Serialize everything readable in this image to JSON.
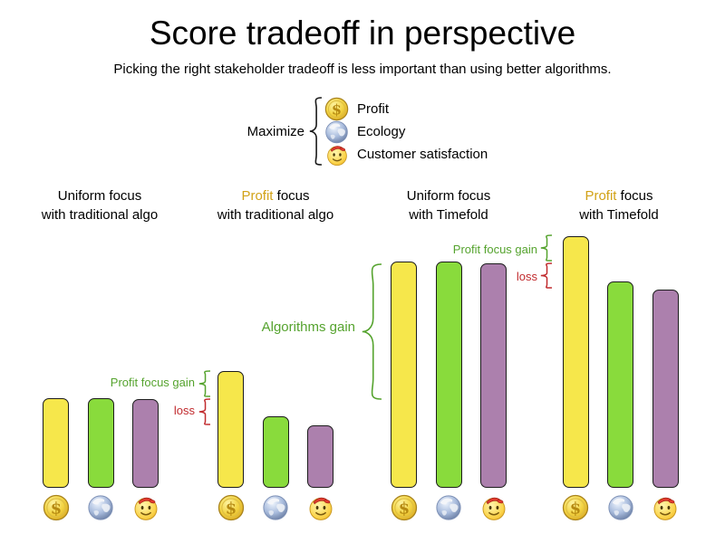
{
  "title": "Score tradeoff in perspective",
  "subtitle": "Picking the right stakeholder tradeoff is less important than using better algorithms.",
  "legend": {
    "label": "Maximize",
    "items": [
      {
        "icon": "coin-icon",
        "label": "Profit"
      },
      {
        "icon": "globe-icon",
        "label": "Ecology"
      },
      {
        "icon": "smiley-icon",
        "label": "Customer satisfaction"
      }
    ]
  },
  "groups": [
    {
      "line1_highlight": "",
      "line1_rest": "Uniform focus",
      "line2": "with traditional algo"
    },
    {
      "line1_highlight": "Profit",
      "line1_rest": " focus",
      "line2": "with traditional algo"
    },
    {
      "line1_highlight": "",
      "line1_rest": "Uniform focus",
      "line2": "with Timefold"
    },
    {
      "line1_highlight": "Profit",
      "line1_rest": " focus",
      "line2": "with Timefold"
    }
  ],
  "annotations": {
    "profit_gain_1": "Profit focus gain",
    "loss_1": "loss",
    "algorithms_gain": "Algorithms gain",
    "profit_gain_2": "Profit focus gain",
    "loss_2": "loss"
  },
  "colors": {
    "profit_bar": "#F6E74B",
    "ecology_bar": "#89DB3C",
    "customer_bar": "#AC80AD",
    "profit_text": "#D2A217",
    "gain_text": "#55A32E",
    "loss_text": "#C12B2E"
  },
  "chart_data": {
    "type": "bar",
    "title": "Score tradeoff in perspective",
    "subtitle": "Picking the right stakeholder tradeoff is less important than using better algorithms.",
    "categories": [
      "Uniform focus with traditional algo",
      "Profit focus with traditional algo",
      "Uniform focus with Timefold",
      "Profit focus with Timefold"
    ],
    "series": [
      {
        "name": "Profit",
        "key": "profit",
        "values": [
          99,
          129,
          250,
          278
        ]
      },
      {
        "name": "Ecology",
        "key": "ecology",
        "values": [
          99,
          79,
          250,
          228
        ]
      },
      {
        "name": "Customer satisfaction",
        "key": "customer",
        "values": [
          98,
          69,
          248,
          219
        ]
      }
    ],
    "value_units": "relative score (px-equivalent, no numeric axis shown)",
    "ylim": [
      0,
      300
    ],
    "grid": false,
    "axes_visible": false,
    "legend_position": "top-center",
    "annotations": [
      {
        "text": "Profit focus gain",
        "between": [
          "Profit @ Profit focus traditional",
          "bars @ Uniform traditional"
        ]
      },
      {
        "text": "loss",
        "between": [
          "bars @ Uniform traditional",
          "Customer @ Profit focus traditional"
        ]
      },
      {
        "text": "Algorithms gain",
        "between": [
          "bars @ Uniform Timefold",
          "bars @ Uniform traditional"
        ]
      },
      {
        "text": "Profit focus gain",
        "between": [
          "Profit @ Profit focus Timefold",
          "bars @ Uniform Timefold"
        ]
      },
      {
        "text": "loss",
        "between": [
          "bars @ Uniform Timefold",
          "Customer @ Profit focus Timefold"
        ]
      }
    ]
  }
}
